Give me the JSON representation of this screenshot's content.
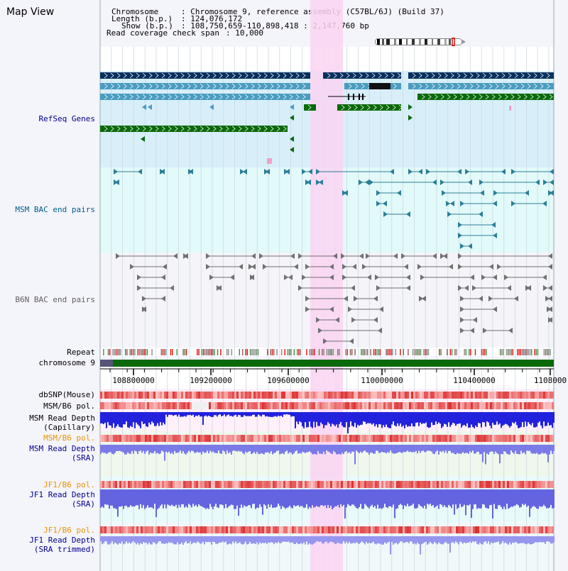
{
  "title": "Map View",
  "header": {
    "chromosome_label": "Chromosome",
    "chromosome_value": ": Chromosome 9, reference assembly (C57BL/6J) (Build 37)",
    "length_label": "Length (b.p.)",
    "length_value": ": 124,076,172",
    "show_label": "Show (b.p.)",
    "show_value": ": 108,750,659-110,898,418 : 2,147,760 bp",
    "span_label": "Read coverage check span",
    "span_value": ": 10,000"
  },
  "tracks": {
    "refseq": "RefSeq Genes",
    "msm_bac": "MSM BAC end pairs",
    "b6n_bac": "B6N BAC end pairs",
    "repeat": "Repeat",
    "chromosome": "chromosome 9",
    "dbsnp": "dbSNP(Mouse)",
    "msm_b6_pol_1": "MSM/B6 pol.",
    "msm_depth_cap": [
      "MSM Read Depth",
      "(Capillary)"
    ],
    "msm_b6_pol_2": "MSM/B6 pol.",
    "msm_depth_sra": [
      "MSM Read Depth",
      "(SRA)"
    ],
    "jf1_b6_pol_1": "JF1/B6 pol.",
    "jf1_depth_sra": [
      "JF1 Read Depth",
      "(SRA)"
    ],
    "jf1_b6_pol_2": "JF1/B6 pol.",
    "jf1_depth_trim": [
      "JF1 Read Depth",
      "(SRA trimmed)"
    ]
  },
  "axis": {
    "ticks": [
      "108800000",
      "109200000",
      "109600000",
      "110000000",
      "110400000",
      "1108000"
    ]
  },
  "colors": {
    "refseq_bg": "#d8effa",
    "msm_bac_bg": "#e2fafa",
    "b6n_bac_bg": "#f4f4f9",
    "highlight": "#fad4f2",
    "gene_dark": "#08305e",
    "gene_mid": "#4a9cc0",
    "gene_green": "#0a6a0a",
    "msm_bac": "#2a7e98",
    "b6n_bac": "#707070",
    "label_blue": "#00008b",
    "label_teal": "#005f87",
    "label_orange": "#e59400"
  }
}
